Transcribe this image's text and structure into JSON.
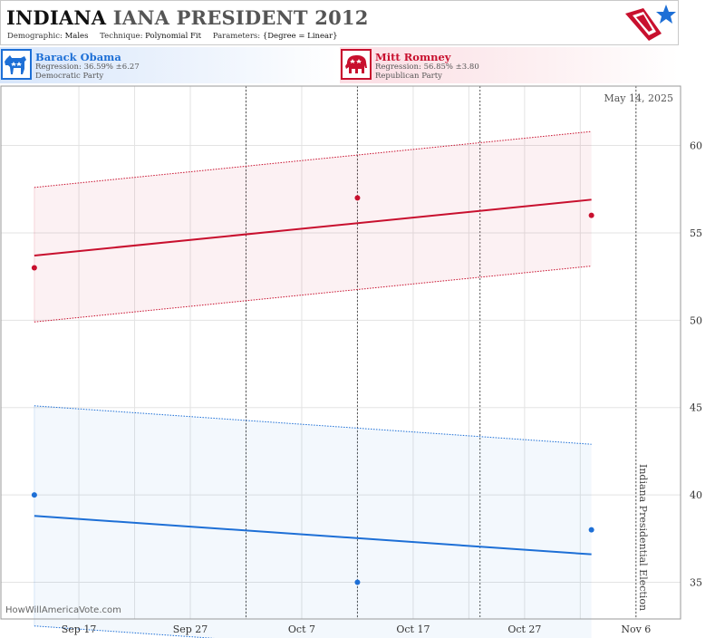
{
  "header": {
    "title_state": "INDIANA",
    "title_rest": "IANA PRESIDENT 2012",
    "demographic_label": "Demographic:",
    "demographic_value": "Males",
    "technique_label": "Technique:",
    "technique_value": "Polynomial Fit",
    "parameters_label": "Parameters:",
    "parameters_value": "{Degree = Linear}"
  },
  "candidates": [
    {
      "name": "Barack Obama",
      "regression": "Regression: 36.59% ±6.27",
      "party": "Democratic Party",
      "color": "#1d6fd6",
      "icon": "donkey-icon"
    },
    {
      "name": "Mitt Romney",
      "regression": "Regression: 56.85% ±3.80",
      "party": "Republican Party",
      "color": "#c8102e",
      "icon": "elephant-icon"
    }
  ],
  "watermark": "HowWillAmericaVote.com",
  "chart_data": {
    "type": "line",
    "date_label": "May 14, 2025",
    "election_label": "Indiana Presidential Election",
    "x_ticks": [
      "Sep 17",
      "Sep 27",
      "Oct 7",
      "Oct 17",
      "Oct 27",
      "Nov 6"
    ],
    "y_ticks": [
      35,
      40,
      45,
      50,
      55,
      60
    ],
    "ylim": [
      32.9,
      63.4
    ],
    "x_domain": [
      "2012-09-10",
      "2012-11-10"
    ],
    "election_date": "2012-11-06",
    "poll_dates": [
      "2012-10-02",
      "2012-10-12",
      "2012-10-23"
    ],
    "series": [
      {
        "name": "Mitt Romney",
        "color": "#c8102e",
        "fit": [
          {
            "x": "2012-09-13",
            "y": 53.7
          },
          {
            "x": "2012-11-02",
            "y": 56.9
          }
        ],
        "upper": [
          {
            "x": "2012-09-13",
            "y": 57.6
          },
          {
            "x": "2012-11-02",
            "y": 60.8
          }
        ],
        "lower": [
          {
            "x": "2012-09-13",
            "y": 49.9
          },
          {
            "x": "2012-11-02",
            "y": 53.1
          }
        ],
        "points": [
          {
            "x": "2012-09-13",
            "y": 53
          },
          {
            "x": "2012-10-12",
            "y": 57
          },
          {
            "x": "2012-11-02",
            "y": 56
          }
        ]
      },
      {
        "name": "Barack Obama",
        "color": "#1d6fd6",
        "fit": [
          {
            "x": "2012-09-13",
            "y": 38.8
          },
          {
            "x": "2012-11-02",
            "y": 36.6
          }
        ],
        "upper": [
          {
            "x": "2012-09-13",
            "y": 45.1
          },
          {
            "x": "2012-11-02",
            "y": 42.9
          }
        ],
        "lower": [
          {
            "x": "2012-09-13",
            "y": 32.5
          },
          {
            "x": "2012-11-02",
            "y": 30.3
          }
        ],
        "points": [
          {
            "x": "2012-09-13",
            "y": 40
          },
          {
            "x": "2012-10-12",
            "y": 35
          },
          {
            "x": "2012-11-02",
            "y": 38
          }
        ]
      }
    ]
  }
}
